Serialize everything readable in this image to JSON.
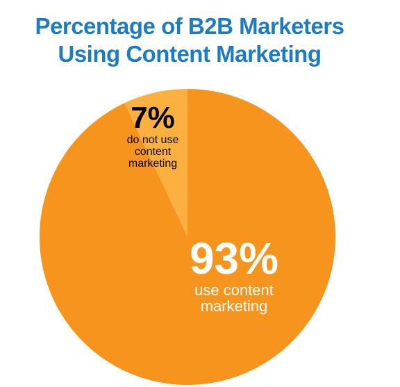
{
  "chart_data": {
    "type": "pie",
    "title": "Percentage of B2B Marketers Using Content Marketing",
    "categories": [
      "use content marketing",
      "do not use content marketing"
    ],
    "values": [
      93,
      7
    ],
    "value_labels": [
      "93%",
      "7%"
    ],
    "colors": [
      "#f7941d",
      "#fbb040"
    ]
  }
}
